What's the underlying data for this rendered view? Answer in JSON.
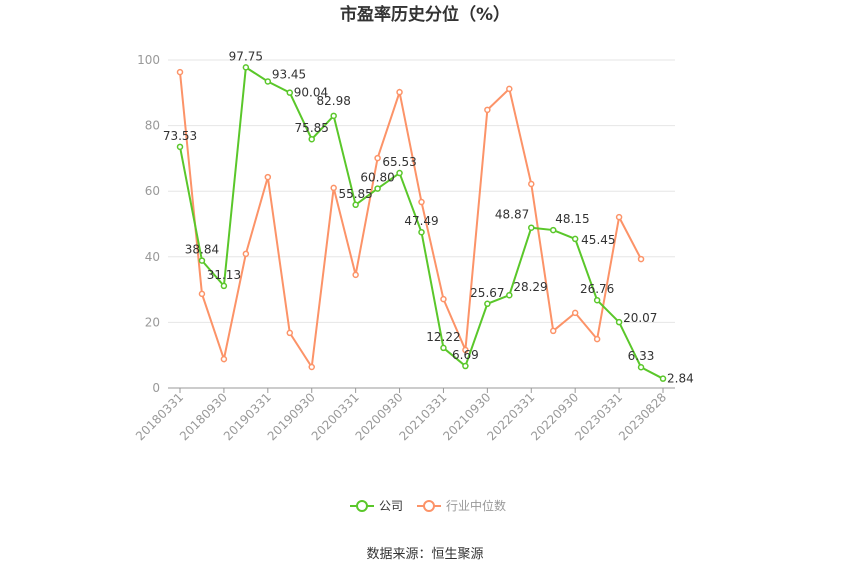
{
  "chart_data": {
    "type": "line",
    "title": "市盈率历史分位（%）",
    "ylim": [
      0,
      100
    ],
    "yticks": [
      0,
      20,
      40,
      60,
      80,
      100
    ],
    "x": [
      "20180331",
      "20180630",
      "20180930",
      "20181231",
      "20190331",
      "20190630",
      "20190930",
      "20191231",
      "20200331",
      "20200630",
      "20200930",
      "20201231",
      "20210331",
      "20210630",
      "20210930",
      "20211231",
      "20220331",
      "20220630",
      "20220930",
      "20221231",
      "20230331",
      "20230630",
      "20230828"
    ],
    "xtick_labels": [
      "20180331",
      "20180930",
      "20190331",
      "20190930",
      "20200331",
      "20200930",
      "20210331",
      "20210930",
      "20220331",
      "20220930",
      "20230331",
      "20230828"
    ],
    "series": [
      {
        "name": "公司",
        "color": "#5ac72a",
        "values": [
          73.53,
          38.84,
          31.13,
          97.75,
          93.45,
          90.04,
          75.85,
          82.98,
          55.85,
          60.8,
          65.53,
          47.49,
          12.22,
          6.69,
          25.67,
          28.29,
          48.87,
          48.15,
          45.45,
          26.76,
          20.07,
          6.33,
          2.84
        ],
        "labels": [
          "73.53",
          "38.84",
          "31.13",
          "97.75",
          "93.45",
          "90.04",
          "75.85",
          "82.98",
          "55.85",
          "60.80",
          "65.53",
          "47.49",
          "12.22",
          "6.69",
          "25.67",
          "28.29",
          "48.87",
          "48.15",
          "45.45",
          "26.76",
          "20.07",
          "6.33",
          "2.84"
        ]
      },
      {
        "name": "行业中位数",
        "color": "#fc9368",
        "values": [
          96.3,
          28.7,
          8.8,
          40.9,
          64.3,
          16.8,
          6.4,
          61.0,
          34.5,
          70.1,
          90.2,
          56.7,
          27.1,
          11.6,
          84.8,
          91.2,
          62.2,
          17.4,
          22.9,
          14.9,
          52.1,
          39.3,
          null
        ]
      }
    ],
    "legend": "bottom",
    "grid": true
  },
  "source": "数据来源：恒生聚源"
}
